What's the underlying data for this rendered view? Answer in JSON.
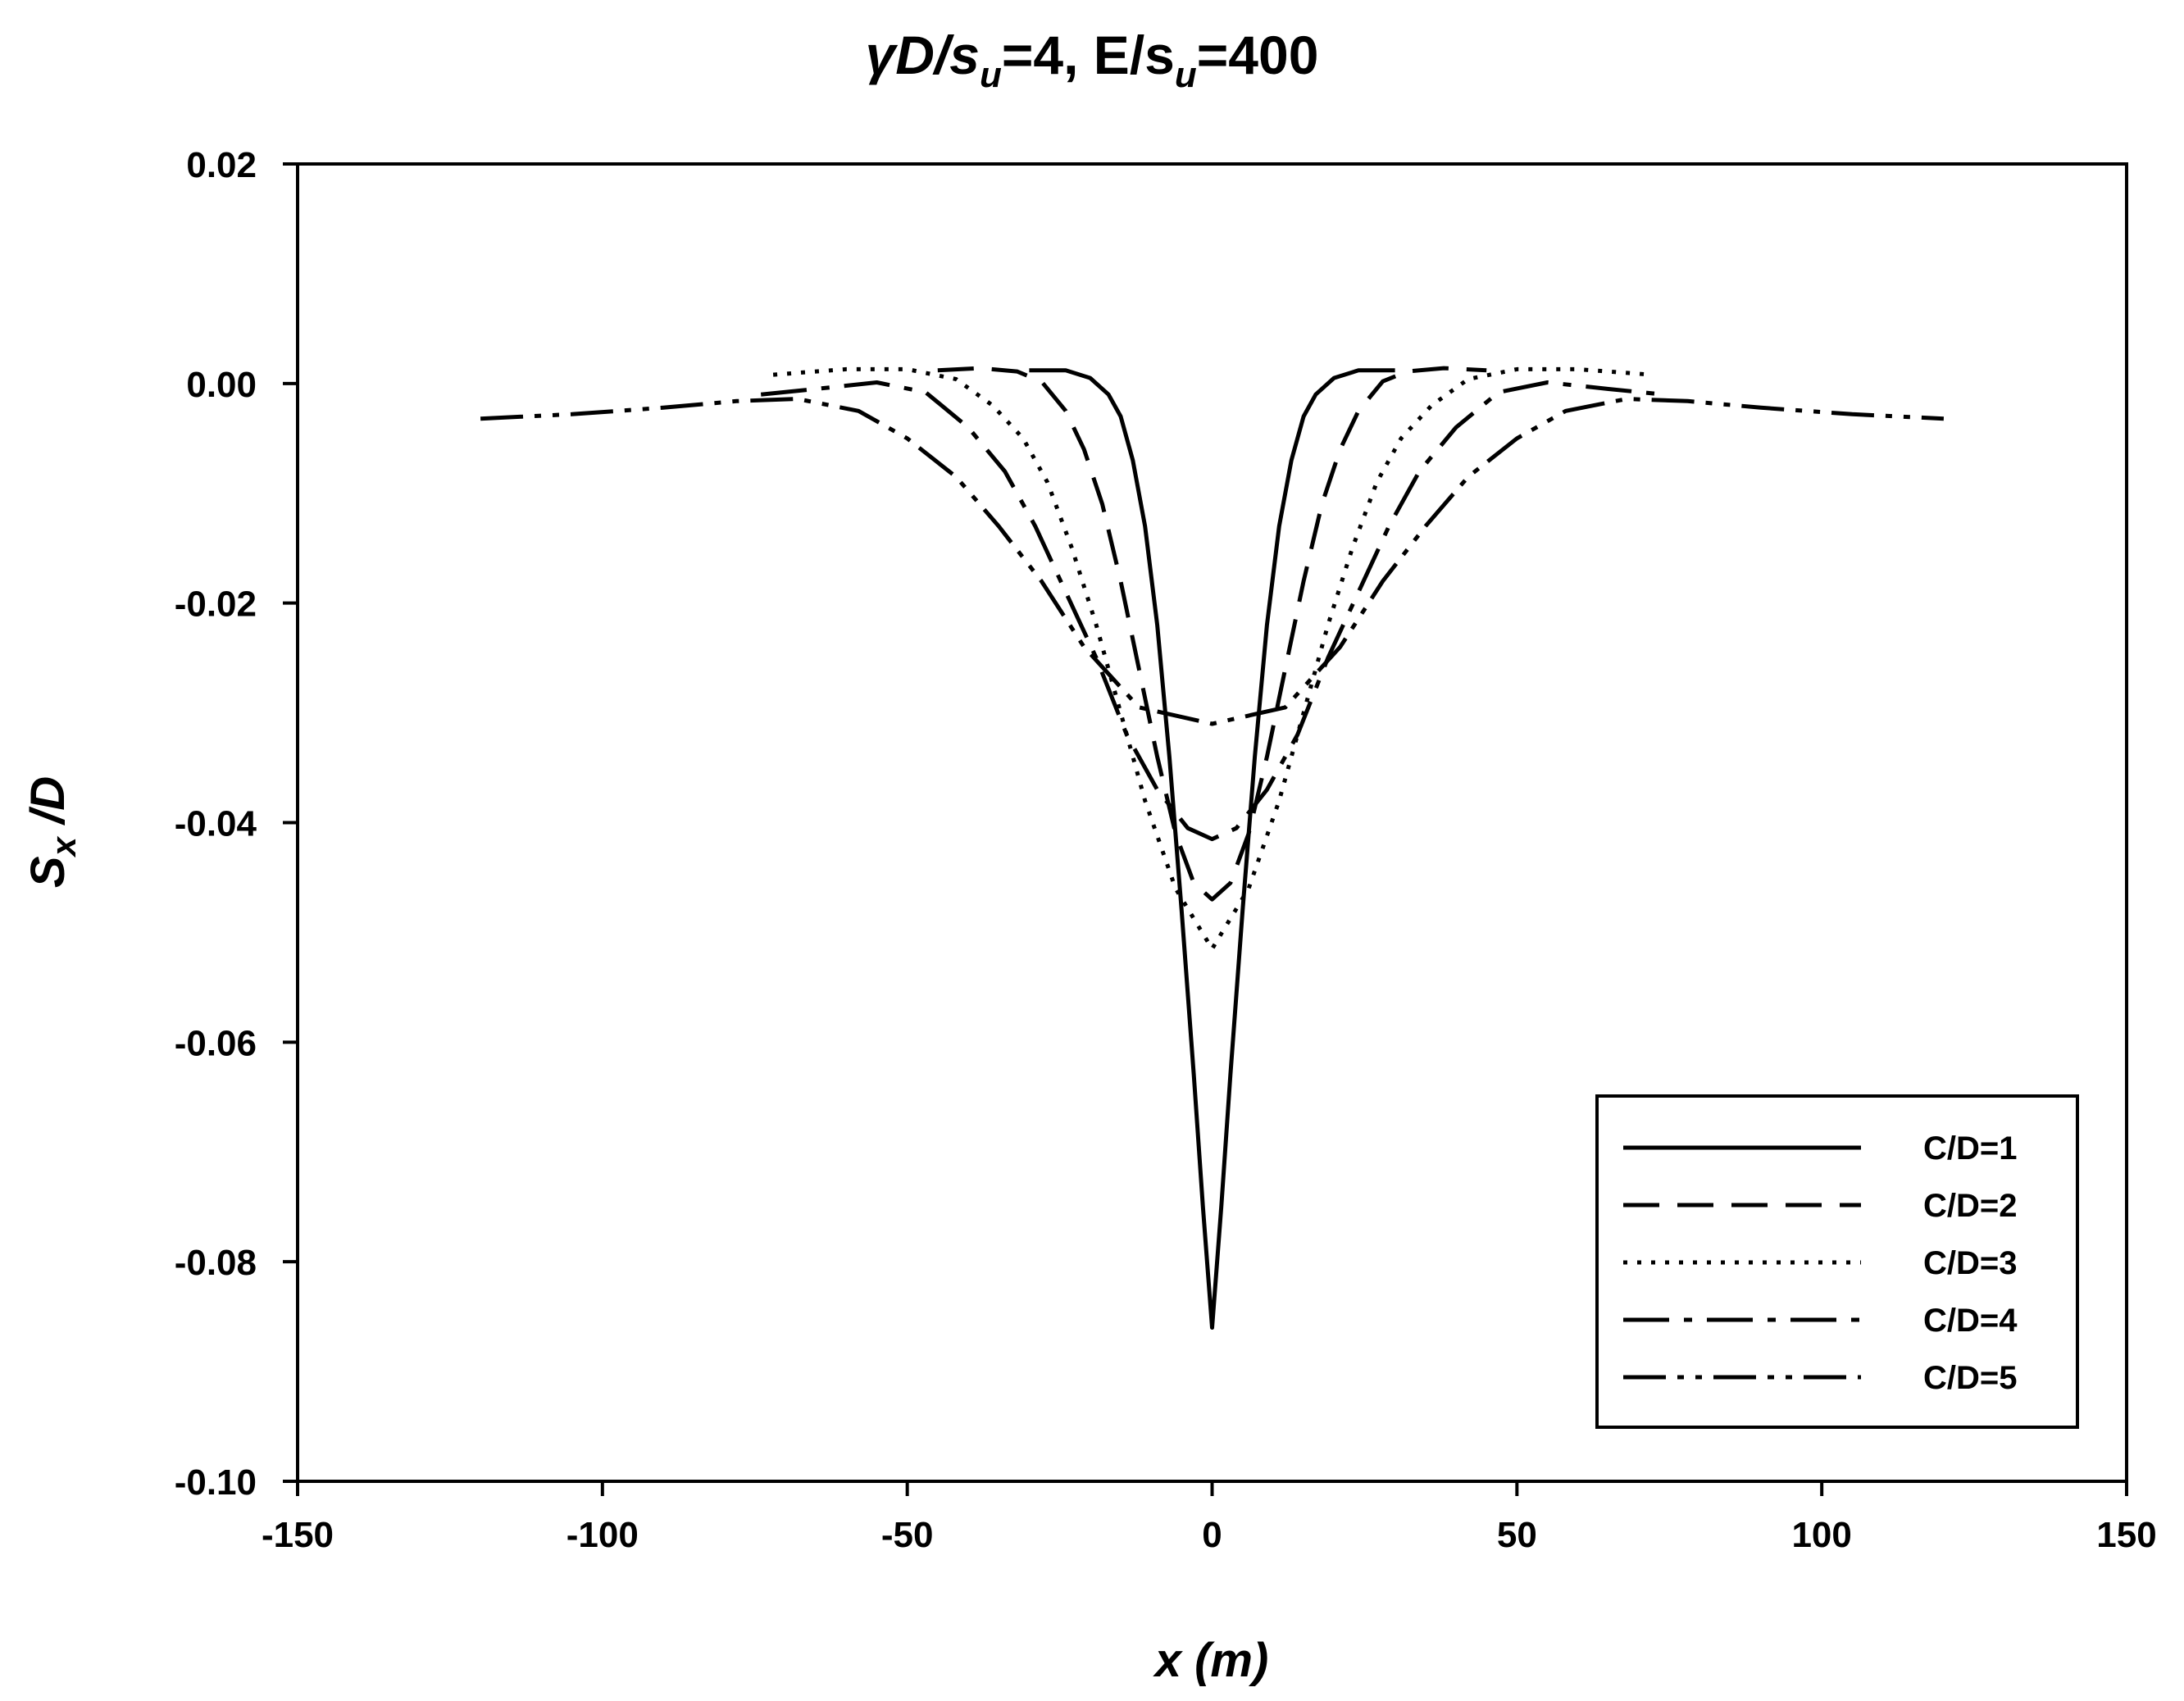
{
  "chart_data": {
    "type": "line",
    "title": {
      "pre": "γD/s",
      "sub1": "u",
      "mid": "=4, E/s",
      "sub2": "u",
      "post": "=400"
    },
    "xlabel": "x (m)",
    "ylabel": {
      "main": "S",
      "sub": "x",
      "post": " /D"
    },
    "xlim": [
      -150,
      150
    ],
    "ylim": [
      -0.1,
      0.02
    ],
    "xticks": [
      "-150",
      "-100",
      "-50",
      "0",
      "50",
      "100",
      "150"
    ],
    "yticks": [
      "0.02",
      "0.00",
      "-0.02",
      "-0.04",
      "-0.06",
      "-0.08",
      "-0.10"
    ],
    "grid": false,
    "legend_position": "bottom-right",
    "series": [
      {
        "name": "C/D=1",
        "dash": "solid",
        "x": [
          -30,
          -24,
          -20,
          -17,
          -15,
          -13,
          -11,
          -9,
          -7,
          -5,
          -3,
          -1.5,
          0,
          1.5,
          3,
          5,
          7,
          9,
          11,
          13,
          15,
          17,
          20,
          24,
          30
        ],
        "y": [
          0.0012,
          0.0012,
          0.0005,
          -0.001,
          -0.003,
          -0.007,
          -0.013,
          -0.022,
          -0.034,
          -0.048,
          -0.063,
          -0.075,
          -0.086,
          -0.075,
          -0.063,
          -0.048,
          -0.034,
          -0.022,
          -0.013,
          -0.007,
          -0.003,
          -0.001,
          0.0005,
          0.0012,
          0.0012
        ]
      },
      {
        "name": "C/D=2",
        "dash": "long-dash",
        "x": [
          -45,
          -38,
          -32,
          -28,
          -24,
          -21,
          -18,
          -15,
          -12,
          -9,
          -6,
          -3,
          0,
          3,
          6,
          9,
          12,
          15,
          18,
          21,
          24,
          28,
          32,
          38,
          45
        ],
        "y": [
          0.0012,
          0.0014,
          0.0011,
          0.0002,
          -0.0025,
          -0.006,
          -0.011,
          -0.018,
          -0.026,
          -0.034,
          -0.041,
          -0.0455,
          -0.047,
          -0.0455,
          -0.041,
          -0.034,
          -0.026,
          -0.018,
          -0.011,
          -0.006,
          -0.0025,
          0.0002,
          0.0011,
          0.0014,
          0.0012
        ]
      },
      {
        "name": "C/D=3",
        "dash": "dotted",
        "x": [
          -72,
          -60,
          -50,
          -42,
          -36,
          -31,
          -27,
          -23,
          -19,
          -15,
          -11,
          -6,
          0,
          6,
          11,
          15,
          19,
          23,
          27,
          31,
          36,
          42,
          50,
          60,
          72
        ],
        "y": [
          0.0008,
          0.0013,
          0.0013,
          0.0004,
          -0.002,
          -0.005,
          -0.009,
          -0.015,
          -0.022,
          -0.03,
          -0.038,
          -0.046,
          -0.0515,
          -0.046,
          -0.038,
          -0.03,
          -0.022,
          -0.015,
          -0.009,
          -0.005,
          -0.002,
          0.0004,
          0.0013,
          0.0013,
          0.0008
        ]
      },
      {
        "name": "C/D=4",
        "dash": "dash-dot",
        "x": [
          -74,
          -65,
          -55,
          -47,
          -40,
          -34,
          -29,
          -24,
          -19,
          -14,
          -9,
          -4,
          0,
          4,
          9,
          14,
          19,
          24,
          29,
          34,
          40,
          47,
          55,
          65,
          74
        ],
        "y": [
          -0.001,
          -0.0005,
          0.0001,
          -0.0008,
          -0.004,
          -0.008,
          -0.013,
          -0.019,
          -0.025,
          -0.032,
          -0.037,
          -0.0405,
          -0.0415,
          -0.0405,
          -0.037,
          -0.032,
          -0.025,
          -0.019,
          -0.013,
          -0.008,
          -0.004,
          -0.0008,
          0.0001,
          -0.0005,
          -0.001
        ]
      },
      {
        "name": "C/D=5",
        "dash": "dash-dot-dot",
        "x": [
          -120,
          -105,
          -90,
          -78,
          -68,
          -58,
          -50,
          -42,
          -35,
          -28,
          -21,
          -12,
          0,
          12,
          21,
          28,
          35,
          42,
          50,
          58,
          68,
          78,
          90,
          105,
          120
        ],
        "y": [
          -0.0032,
          -0.0028,
          -0.0022,
          -0.0016,
          -0.0014,
          -0.0025,
          -0.005,
          -0.0085,
          -0.013,
          -0.018,
          -0.024,
          -0.0295,
          -0.031,
          -0.0295,
          -0.024,
          -0.018,
          -0.013,
          -0.0085,
          -0.005,
          -0.0025,
          -0.0014,
          -0.0016,
          -0.0022,
          -0.0028,
          -0.0032
        ]
      }
    ]
  }
}
